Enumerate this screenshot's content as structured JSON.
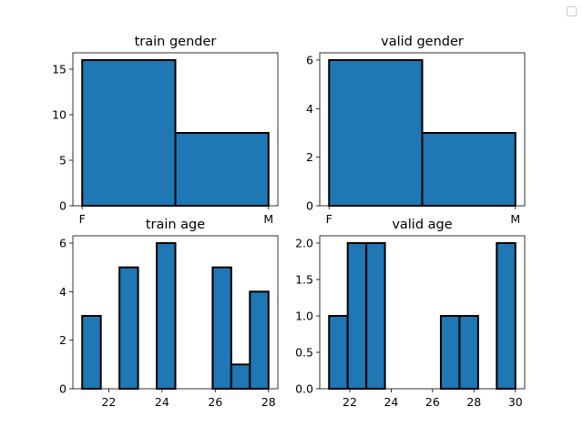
{
  "figure": {
    "legend_placement": "top-right",
    "bar_color": "#1f77b4",
    "edge_color": "#000000"
  },
  "chart_data": [
    {
      "id": "train-gender",
      "type": "bar",
      "title": "train gender",
      "categories": [
        "F",
        "M"
      ],
      "bins": [
        [
          0,
          0.5,
          16
        ],
        [
          0.5,
          1,
          8
        ]
      ],
      "xlim": [
        -0.05,
        1.05
      ],
      "xticks": [
        [
          0,
          "F"
        ],
        [
          1,
          "M"
        ]
      ],
      "ylim": [
        0,
        16.8
      ],
      "yticks": [
        [
          0,
          "0"
        ],
        [
          5,
          "5"
        ],
        [
          10,
          "10"
        ],
        [
          15,
          "15"
        ]
      ],
      "xlabel": "",
      "ylabel": "",
      "grid": false
    },
    {
      "id": "valid-gender",
      "type": "bar",
      "title": "valid gender",
      "categories": [
        "F",
        "M"
      ],
      "bins": [
        [
          0,
          0.5,
          6
        ],
        [
          0.5,
          1,
          3
        ]
      ],
      "xlim": [
        -0.05,
        1.05
      ],
      "xticks": [
        [
          0,
          "F"
        ],
        [
          1,
          "M"
        ]
      ],
      "ylim": [
        0,
        6.3
      ],
      "yticks": [
        [
          0,
          "0"
        ],
        [
          2,
          "2"
        ],
        [
          4,
          "4"
        ],
        [
          6,
          "6"
        ]
      ],
      "xlabel": "",
      "ylabel": "",
      "grid": false
    },
    {
      "id": "train-age",
      "type": "bar",
      "title": "train age",
      "bins": [
        [
          21,
          21.7,
          3
        ],
        [
          21.7,
          22.4,
          0
        ],
        [
          22.4,
          23.1,
          5
        ],
        [
          23.1,
          23.8,
          0
        ],
        [
          23.8,
          24.5,
          6
        ],
        [
          24.5,
          25.2,
          0
        ],
        [
          25.2,
          25.9,
          0
        ],
        [
          25.9,
          26.6,
          5
        ],
        [
          26.6,
          27.3,
          1
        ],
        [
          27.3,
          28,
          4
        ]
      ],
      "xlim": [
        20.65,
        28.35
      ],
      "xticks": [
        [
          22,
          "22"
        ],
        [
          24,
          "24"
        ],
        [
          26,
          "26"
        ],
        [
          28,
          "28"
        ]
      ],
      "ylim": [
        0,
        6.3
      ],
      "yticks": [
        [
          0,
          "0"
        ],
        [
          2,
          "2"
        ],
        [
          4,
          "4"
        ],
        [
          6,
          "6"
        ]
      ],
      "xlabel": "",
      "ylabel": "",
      "grid": false
    },
    {
      "id": "valid-age",
      "type": "bar",
      "title": "valid age",
      "bins": [
        [
          21,
          21.9,
          1
        ],
        [
          21.9,
          22.8,
          2
        ],
        [
          22.8,
          23.7,
          2
        ],
        [
          23.7,
          24.6,
          0
        ],
        [
          24.6,
          25.5,
          0
        ],
        [
          25.5,
          26.4,
          0
        ],
        [
          26.4,
          27.3,
          1
        ],
        [
          27.3,
          28.2,
          1
        ],
        [
          28.2,
          29.1,
          0
        ],
        [
          29.1,
          30,
          2
        ]
      ],
      "xlim": [
        20.55,
        30.45
      ],
      "xticks": [
        [
          22,
          "22"
        ],
        [
          24,
          "24"
        ],
        [
          26,
          "26"
        ],
        [
          28,
          "28"
        ],
        [
          30,
          "30"
        ]
      ],
      "ylim": [
        0,
        2.1
      ],
      "yticks": [
        [
          0,
          "0.0"
        ],
        [
          0.5,
          "0.5"
        ],
        [
          1,
          "1.0"
        ],
        [
          1.5,
          "1.5"
        ],
        [
          2,
          "2.0"
        ]
      ],
      "xlabel": "",
      "ylabel": "",
      "grid": false
    }
  ]
}
